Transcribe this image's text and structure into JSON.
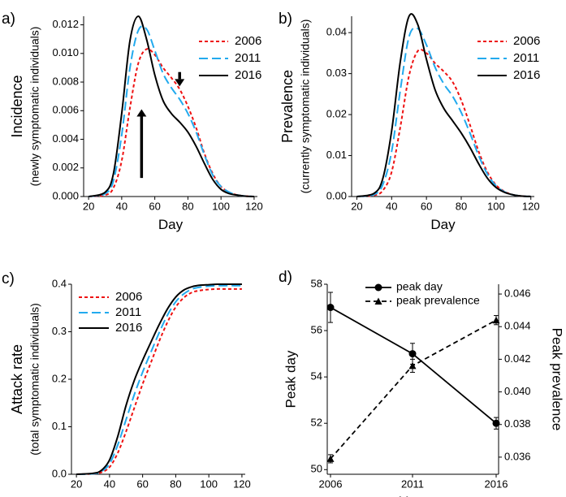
{
  "colors": {
    "s2006": "#ee1111",
    "s2011": "#22aaee",
    "s2016": "#000000",
    "axis": "#000000"
  },
  "chart_data": [
    {
      "panel_label": "a)",
      "type": "line",
      "xlabel": "Day",
      "ylabel": "Incidence",
      "ylabel_sub": "(newly symptomatic individuals)",
      "xlim": [
        17,
        122
      ],
      "ylim": [
        0,
        0.0126
      ],
      "xticks": [
        20,
        40,
        60,
        80,
        100,
        120
      ],
      "yticks": [
        0,
        0.002,
        0.004,
        0.006,
        0.008,
        0.01,
        0.012
      ],
      "ytick_labels": [
        "0.000",
        "0.002",
        "0.004",
        "0.006",
        "0.008",
        "0.010",
        "0.012"
      ],
      "legend": "top-right",
      "annotations": [
        {
          "type": "arrow-up",
          "x": 52,
          "y_from": 0.0013,
          "y_to": 0.0061
        },
        {
          "type": "arrow-down",
          "x": 75,
          "y_from": 0.0087,
          "y_to": 0.0077
        }
      ],
      "series": [
        {
          "name": "2006",
          "style": "dotted",
          "x": [
            20,
            30,
            35,
            40,
            45,
            50,
            55,
            60,
            65,
            70,
            75,
            80,
            85,
            90,
            95,
            100,
            105,
            110,
            115,
            120
          ],
          "y": [
            0,
            0.0001,
            0.0006,
            0.0025,
            0.0062,
            0.0093,
            0.0103,
            0.0099,
            0.009,
            0.0083,
            0.0075,
            0.0063,
            0.0048,
            0.003,
            0.0016,
            0.0007,
            0.0003,
            0.0001,
            3e-05,
            0
          ]
        },
        {
          "name": "2011",
          "style": "dashed",
          "x": [
            20,
            30,
            35,
            40,
            45,
            50,
            55,
            60,
            65,
            70,
            75,
            80,
            85,
            90,
            95,
            100,
            105,
            110,
            115,
            120
          ],
          "y": [
            0,
            0.0002,
            0.0011,
            0.0043,
            0.009,
            0.0116,
            0.0117,
            0.0102,
            0.0086,
            0.0076,
            0.0068,
            0.0058,
            0.0045,
            0.0029,
            0.0015,
            0.0007,
            0.0003,
            0.0001,
            3e-05,
            0
          ]
        },
        {
          "name": "2016",
          "style": "solid",
          "x": [
            20,
            30,
            35,
            40,
            45,
            50,
            55,
            60,
            65,
            70,
            75,
            80,
            85,
            90,
            95,
            100,
            105,
            110,
            115,
            120
          ],
          "y": [
            0,
            0.0003,
            0.0016,
            0.0058,
            0.0109,
            0.0126,
            0.011,
            0.0085,
            0.0067,
            0.0058,
            0.0052,
            0.0045,
            0.0035,
            0.0023,
            0.0012,
            0.0005,
            0.0002,
            0.0001,
            2e-05,
            0
          ]
        }
      ]
    },
    {
      "panel_label": "b)",
      "type": "line",
      "xlabel": "Day",
      "ylabel": "Prevalence",
      "ylabel_sub": "(currently symptomatic individuals)",
      "xlim": [
        17,
        122
      ],
      "ylim": [
        0,
        0.044
      ],
      "xticks": [
        20,
        40,
        60,
        80,
        100,
        120
      ],
      "yticks": [
        0,
        0.01,
        0.02,
        0.03,
        0.04
      ],
      "ytick_labels": [
        "0.00",
        "0.01",
        "0.02",
        "0.03",
        "0.04"
      ],
      "legend": "top-right",
      "series": [
        {
          "name": "2006",
          "style": "dotted",
          "x": [
            20,
            30,
            35,
            40,
            45,
            50,
            55,
            60,
            65,
            70,
            75,
            80,
            85,
            90,
            95,
            100,
            105,
            110,
            115,
            120
          ],
          "y": [
            0,
            0.0003,
            0.0015,
            0.006,
            0.017,
            0.0295,
            0.0355,
            0.035,
            0.0325,
            0.0305,
            0.028,
            0.0235,
            0.0175,
            0.011,
            0.006,
            0.0028,
            0.0012,
            0.0004,
            0.0001,
            0
          ]
        },
        {
          "name": "2011",
          "style": "dashed",
          "x": [
            20,
            30,
            35,
            40,
            45,
            50,
            55,
            60,
            65,
            70,
            75,
            80,
            85,
            90,
            95,
            100,
            105,
            110,
            115,
            120
          ],
          "y": [
            0,
            0.0005,
            0.003,
            0.011,
            0.026,
            0.039,
            0.041,
            0.037,
            0.0315,
            0.0275,
            0.0245,
            0.0205,
            0.0155,
            0.01,
            0.0055,
            0.0026,
            0.0011,
            0.0004,
            0.0001,
            0
          ]
        },
        {
          "name": "2016",
          "style": "solid",
          "x": [
            20,
            30,
            35,
            40,
            45,
            50,
            55,
            60,
            65,
            70,
            75,
            80,
            85,
            90,
            95,
            100,
            105,
            110,
            115,
            120
          ],
          "y": [
            0,
            0.0008,
            0.0045,
            0.016,
            0.033,
            0.044,
            0.042,
            0.0335,
            0.026,
            0.0215,
            0.0185,
            0.0155,
            0.012,
            0.008,
            0.0045,
            0.0022,
            0.001,
            0.0004,
            0.0001,
            0
          ]
        }
      ]
    },
    {
      "panel_label": "c)",
      "type": "line",
      "xlabel": "Day",
      "ylabel": "Attack rate",
      "ylabel_sub": "(total symptomatic individuals)",
      "xlim": [
        17,
        122
      ],
      "ylim": [
        0,
        0.4
      ],
      "xticks": [
        20,
        40,
        60,
        80,
        100,
        120
      ],
      "yticks": [
        0,
        0.1,
        0.2,
        0.3,
        0.4
      ],
      "ytick_labels": [
        "0.0",
        "0.1",
        "0.2",
        "0.3",
        "0.4"
      ],
      "legend": "top-left",
      "series": [
        {
          "name": "2006",
          "style": "dotted",
          "x": [
            20,
            30,
            35,
            40,
            45,
            50,
            55,
            60,
            65,
            70,
            75,
            80,
            85,
            90,
            95,
            100,
            105,
            110,
            115,
            120
          ],
          "y": [
            0,
            0.001,
            0.004,
            0.015,
            0.045,
            0.09,
            0.14,
            0.19,
            0.235,
            0.28,
            0.32,
            0.352,
            0.372,
            0.383,
            0.387,
            0.389,
            0.39,
            0.39,
            0.39,
            0.39
          ]
        },
        {
          "name": "2011",
          "style": "dashed",
          "x": [
            20,
            30,
            35,
            40,
            45,
            50,
            55,
            60,
            65,
            70,
            75,
            80,
            85,
            90,
            95,
            100,
            105,
            110,
            115,
            120
          ],
          "y": [
            0,
            0.001,
            0.006,
            0.022,
            0.062,
            0.115,
            0.168,
            0.215,
            0.257,
            0.298,
            0.335,
            0.363,
            0.38,
            0.39,
            0.394,
            0.396,
            0.397,
            0.397,
            0.397,
            0.397
          ]
        },
        {
          "name": "2016",
          "style": "solid",
          "x": [
            20,
            30,
            35,
            40,
            45,
            50,
            55,
            60,
            65,
            70,
            75,
            80,
            85,
            90,
            95,
            100,
            105,
            110,
            115,
            120
          ],
          "y": [
            0,
            0.002,
            0.008,
            0.03,
            0.08,
            0.145,
            0.198,
            0.24,
            0.278,
            0.315,
            0.348,
            0.373,
            0.388,
            0.395,
            0.398,
            0.399,
            0.4,
            0.4,
            0.4,
            0.4
          ]
        }
      ]
    },
    {
      "panel_label": "d)",
      "type": "line",
      "xlabel": "Year",
      "ylabel_left": "Peak day",
      "ylabel_right": "Peak prevalence",
      "x": [
        2006,
        2011,
        2016
      ],
      "xlim": [
        2006,
        2016
      ],
      "ylim_left": [
        49.8,
        58
      ],
      "yticks_left": [
        50,
        52,
        54,
        56,
        58
      ],
      "ylim_right": [
        0.03495,
        0.0466
      ],
      "yticks_right": [
        0.036,
        0.038,
        0.04,
        0.042,
        0.044,
        0.046
      ],
      "ytick_labels_right": [
        "0.036",
        "0.038",
        "0.040",
        "0.042",
        "0.044",
        "0.046"
      ],
      "legend": "top",
      "series": [
        {
          "name": "peak day",
          "axis": "left",
          "style": "solid",
          "marker": "circle",
          "values": [
            57.0,
            55.0,
            52.0
          ],
          "err": [
            0.65,
            0.45,
            0.25
          ]
        },
        {
          "name": "peak prevalence",
          "axis": "right",
          "style": "dashed",
          "marker": "triangle",
          "values": [
            0.0359,
            0.0416,
            0.0444
          ],
          "err": [
            0.00025,
            0.0004,
            0.00028
          ]
        }
      ]
    }
  ]
}
